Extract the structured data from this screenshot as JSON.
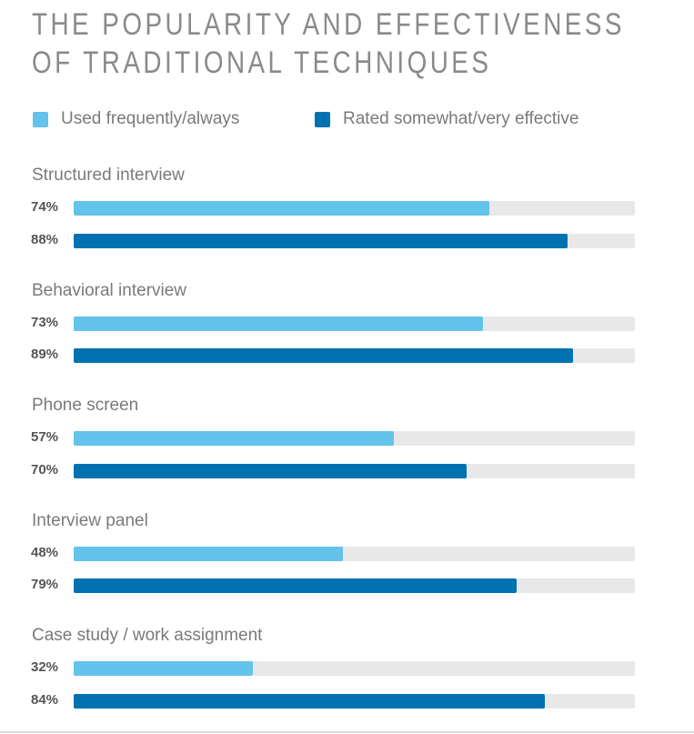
{
  "chart_data": {
    "type": "bar",
    "orientation": "horizontal",
    "title": "THE POPULARITY AND EFFECTIVENESS OF TRADITIONAL TECHNIQUES",
    "title_lines": [
      "THE POPULARITY AND EFFECTIVENESS",
      "OF TRADITIONAL TECHNIQUES"
    ],
    "categories": [
      "Structured interview",
      "Behavioral interview",
      "Phone screen",
      "Interview panel",
      "Case study / work assignment"
    ],
    "series": [
      {
        "name": "Used frequently/always",
        "color": "#63c3ea",
        "values": [
          74,
          73,
          57,
          48,
          32
        ]
      },
      {
        "name": "Rated somewhat/very effective",
        "color": "#0071b1",
        "values": [
          88,
          89,
          70,
          79,
          84
        ]
      }
    ],
    "value_labels": [
      [
        "74%",
        "88%"
      ],
      [
        "73%",
        "89%"
      ],
      [
        "57%",
        "70%"
      ],
      [
        "48%",
        "79%"
      ],
      [
        "32%",
        "84%"
      ]
    ],
    "xlim": [
      0,
      100
    ],
    "track_color": "#e8e8e8",
    "legend": "top-left",
    "grid": false,
    "xlabel": "",
    "ylabel": ""
  }
}
